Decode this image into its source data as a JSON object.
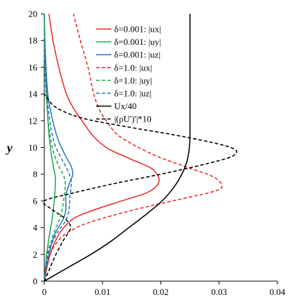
{
  "chart_data": {
    "type": "line",
    "title": "",
    "xlabel": "",
    "ylabel": "y",
    "xlim": [
      0,
      0.04
    ],
    "ylim": [
      0,
      20
    ],
    "xticks": [
      "0",
      "0.01",
      "0.02",
      "0.03",
      "0.04"
    ],
    "yticks": [
      "0",
      "2",
      "4",
      "6",
      "8",
      "10",
      "12",
      "14",
      "16",
      "18",
      "20"
    ],
    "grid": false,
    "legend_position": "top-center",
    "series": [
      {
        "name": "δ=0.001: |ux|",
        "color": "#e8231f",
        "dash": "solid",
        "points": [
          [
            0,
            0
          ],
          [
            0.001,
            2
          ],
          [
            0.0025,
            3.5
          ],
          [
            0.004,
            4.3
          ],
          [
            0.0055,
            4.8
          ],
          [
            0.009,
            5.4
          ],
          [
            0.014,
            6.1
          ],
          [
            0.018,
            6.7
          ],
          [
            0.0197,
            7.5
          ],
          [
            0.0185,
            8.4
          ],
          [
            0.015,
            9.1
          ],
          [
            0.011,
            9.9
          ],
          [
            0.0085,
            10.8
          ],
          [
            0.0068,
            11.8
          ],
          [
            0.0052,
            12.8
          ],
          [
            0.0038,
            14
          ],
          [
            0.0025,
            16
          ],
          [
            0.0015,
            18
          ],
          [
            0.0008,
            20
          ]
        ]
      },
      {
        "name": "δ=0.001: |uy|",
        "color": "#1aa64b",
        "dash": "solid",
        "points": [
          [
            0,
            0
          ],
          [
            0.0004,
            2
          ],
          [
            0.0009,
            3.5
          ],
          [
            0.0013,
            4.5
          ],
          [
            0.0016,
            5.5
          ],
          [
            0.0018,
            6.5
          ],
          [
            0.0019,
            7.3
          ],
          [
            0.0019,
            7.8
          ],
          [
            0.0016,
            8.5
          ],
          [
            0.0012,
            9.5
          ],
          [
            0.0008,
            11
          ],
          [
            0.0005,
            13
          ],
          [
            0.0003,
            15
          ],
          [
            0.0001,
            18
          ],
          [
            0,
            20
          ]
        ]
      },
      {
        "name": "δ=0.001: |uz|",
        "color": "#1f73b9",
        "dash": "solid",
        "points": [
          [
            0,
            0
          ],
          [
            0.0008,
            2
          ],
          [
            0.0018,
            3.5
          ],
          [
            0.0028,
            4.3
          ],
          [
            0.0034,
            4.8
          ],
          [
            0.0037,
            5.4
          ],
          [
            0.0037,
            6
          ],
          [
            0.0038,
            6.6
          ],
          [
            0.0044,
            7.4
          ],
          [
            0.0049,
            8
          ],
          [
            0.0046,
            8.6
          ],
          [
            0.0035,
            9.5
          ],
          [
            0.0022,
            10.8
          ],
          [
            0.0012,
            12.5
          ],
          [
            0.0006,
            14
          ],
          [
            0.0003,
            16
          ],
          [
            0.0001,
            18
          ],
          [
            0,
            20
          ]
        ]
      },
      {
        "name": "δ=1.0: |ux|",
        "color": "#e8231f",
        "dash": "dashed",
        "points": [
          [
            0,
            0
          ],
          [
            0.001,
            2
          ],
          [
            0.003,
            3.3
          ],
          [
            0.006,
            4.1
          ],
          [
            0.01,
            4.7
          ],
          [
            0.016,
            5.4
          ],
          [
            0.023,
            6.1
          ],
          [
            0.029,
            6.7
          ],
          [
            0.0305,
            7.1
          ],
          [
            0.029,
            7.8
          ],
          [
            0.024,
            8.6
          ],
          [
            0.0185,
            9.5
          ],
          [
            0.013,
            10.8
          ],
          [
            0.011,
            11.8
          ],
          [
            0.0095,
            12.8
          ],
          [
            0.0085,
            14
          ],
          [
            0.0075,
            16
          ],
          [
            0.0062,
            18
          ],
          [
            0.005,
            20
          ]
        ]
      },
      {
        "name": "δ=1.0: |uy|",
        "color": "#1aa64b",
        "dash": "dashed",
        "points": [
          [
            0,
            0
          ],
          [
            0.0005,
            2
          ],
          [
            0.0012,
            3
          ],
          [
            0.0018,
            3.8
          ],
          [
            0.0025,
            4.5
          ],
          [
            0.003,
            5.2
          ],
          [
            0.0033,
            6
          ],
          [
            0.0035,
            6.6
          ],
          [
            0.0036,
            7.2
          ],
          [
            0.0034,
            7.8
          ],
          [
            0.0025,
            8.6
          ],
          [
            0.0015,
            9.8
          ],
          [
            0.0008,
            11.5
          ],
          [
            0.0004,
            13.5
          ],
          [
            0.0001,
            16
          ],
          [
            0,
            20
          ]
        ]
      },
      {
        "name": "δ=1.0: |uz|",
        "color": "#1f73b9",
        "dash": "dashed",
        "points": [
          [
            0,
            0
          ],
          [
            0.0006,
            2
          ],
          [
            0.0015,
            3
          ],
          [
            0.0025,
            3.8
          ],
          [
            0.0035,
            4.4
          ],
          [
            0.0041,
            5
          ],
          [
            0.0043,
            5.6
          ],
          [
            0.0044,
            6.3
          ],
          [
            0.0046,
            7
          ],
          [
            0.0046,
            7.6
          ],
          [
            0.004,
            8.3
          ],
          [
            0.0028,
            9.3
          ],
          [
            0.0016,
            10.5
          ],
          [
            0.0008,
            12.5
          ],
          [
            0.0003,
            15
          ],
          [
            0,
            18
          ]
        ]
      },
      {
        "name": "Ux/40",
        "color": "#000000",
        "dash": "solid",
        "points": [
          [
            0,
            0
          ],
          [
            0.004,
            1
          ],
          [
            0.008,
            2
          ],
          [
            0.0115,
            3
          ],
          [
            0.0145,
            4
          ],
          [
            0.0175,
            5
          ],
          [
            0.0202,
            6
          ],
          [
            0.0222,
            7
          ],
          [
            0.0236,
            8
          ],
          [
            0.0245,
            9
          ],
          [
            0.0249,
            10
          ],
          [
            0.025,
            11
          ],
          [
            0.025,
            12
          ],
          [
            0.025,
            14
          ],
          [
            0.025,
            16
          ],
          [
            0.025,
            18
          ],
          [
            0.025,
            20
          ]
        ]
      },
      {
        "name": "|(ρU')'|*10",
        "color": "#000000",
        "dash": "dashed",
        "points": [
          [
            0,
            0
          ],
          [
            0.001,
            1
          ],
          [
            0.002,
            2
          ],
          [
            0.0032,
            3
          ],
          [
            0.0045,
            4
          ],
          [
            0.0035,
            4.7
          ],
          [
            0.0012,
            5.4
          ],
          [
            0,
            6
          ],
          [
            0.005,
            6.6
          ],
          [
            0.012,
            7.3
          ],
          [
            0.02,
            8
          ],
          [
            0.028,
            8.8
          ],
          [
            0.0325,
            9.4
          ],
          [
            0.032,
            10
          ],
          [
            0.024,
            10.8
          ],
          [
            0.0135,
            11.6
          ],
          [
            0.0065,
            12.2
          ],
          [
            0.002,
            13
          ],
          [
            0,
            14
          ]
        ]
      }
    ]
  }
}
